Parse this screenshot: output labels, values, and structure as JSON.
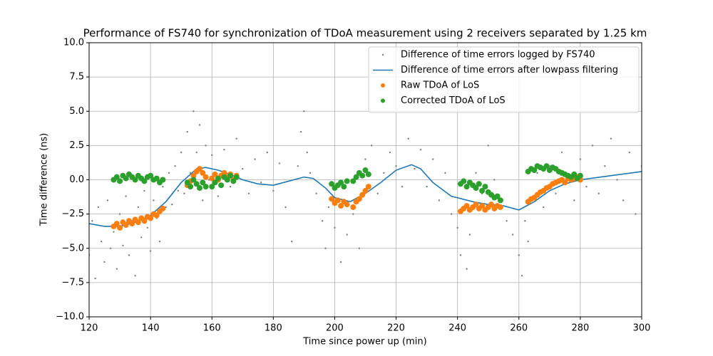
{
  "chart_data": {
    "type": "scatter",
    "title": "Performance of FS740 for synchronization of TDoA measurement using 2 receivers separated by 1.25 km",
    "xlabel": "Time since power up (min)",
    "ylabel": "Time difference (ns)",
    "xlim": [
      120,
      300
    ],
    "xticks": [
      120,
      140,
      160,
      180,
      200,
      220,
      240,
      260,
      280,
      300
    ],
    "ylim": [
      -10,
      10
    ],
    "yticks": [
      {
        "value": -10,
        "label": "−10.0"
      },
      {
        "value": -7.5,
        "label": "−7.5"
      },
      {
        "value": -5,
        "label": "−5.0"
      },
      {
        "value": -2.5,
        "label": "−2.5"
      },
      {
        "value": 0,
        "label": "0.0"
      },
      {
        "value": 2.5,
        "label": "2.5"
      },
      {
        "value": 5,
        "label": "5.0"
      },
      {
        "value": 7.5,
        "label": "7.5"
      },
      {
        "value": 10,
        "label": "10.0"
      }
    ],
    "grid": true,
    "legend": "upper right",
    "series": [
      {
        "name": "Difference of time errors logged by FS740",
        "color": "#808080",
        "mode": "markers",
        "size": 1.2,
        "x": [
          120,
          121,
          122,
          123,
          124,
          125,
          126,
          127,
          128,
          129,
          130,
          131,
          132,
          133,
          134,
          135,
          136,
          137,
          138,
          139,
          140,
          141,
          142,
          143,
          144,
          145,
          146,
          147,
          148,
          149,
          150,
          151,
          152,
          153,
          154,
          155,
          156,
          157,
          158,
          159,
          160,
          162,
          164,
          166,
          168,
          170,
          172,
          174,
          176,
          178,
          180,
          182,
          184,
          186,
          188,
          189,
          190,
          191,
          192,
          194,
          196,
          197,
          198,
          200,
          202,
          204,
          206,
          208,
          210,
          212,
          214,
          216,
          218,
          220,
          222,
          224,
          226,
          228,
          230,
          232,
          234,
          236,
          238,
          240,
          241,
          242,
          243,
          244,
          246,
          248,
          250,
          252,
          254,
          256,
          258,
          260,
          261,
          262,
          263,
          264,
          266,
          268,
          270,
          272,
          274,
          276,
          278,
          280,
          282,
          284,
          286,
          288,
          290,
          292,
          294,
          296,
          298,
          300
        ],
        "values": [
          -5.5,
          -3.0,
          -7.2,
          -2.0,
          -4.5,
          -6.0,
          -1.5,
          -5.0,
          -3.8,
          -6.5,
          -2.5,
          -4.8,
          -1.2,
          -5.5,
          -3.0,
          -7.0,
          -2.0,
          -4.2,
          -0.8,
          -3.5,
          -5.2,
          -1.5,
          -2.8,
          -4.5,
          -0.5,
          -2.0,
          0.5,
          -1.8,
          1.0,
          -0.8,
          2.0,
          -1.0,
          3.5,
          0.5,
          5.0,
          2.0,
          4.0,
          -1.5,
          2.5,
          0.0,
          1.8,
          -1.2,
          2.2,
          -0.5,
          3.0,
          0.8,
          -1.0,
          1.5,
          -0.2,
          2.0,
          -0.8,
          1.2,
          -2.0,
          -4.5,
          1.0,
          3.5,
          5.0,
          2.0,
          0.5,
          -1.0,
          -3.0,
          -5.0,
          -2.0,
          -3.5,
          -6.0,
          -4.0,
          -2.5,
          -5.0,
          1.5,
          2.5,
          -1.0,
          0.5,
          2.0,
          1.0,
          -0.5,
          3.0,
          0.8,
          2.2,
          -0.5,
          1.5,
          -1.5,
          0.5,
          -2.5,
          -3.5,
          -5.5,
          -2.0,
          -6.5,
          -4.0,
          0.5,
          -1.0,
          2.5,
          0.0,
          -1.5,
          -3.0,
          -4.0,
          -5.5,
          -7.0,
          -3.0,
          -4.5,
          -1.5,
          0.5,
          -2.0,
          1.0,
          -1.0,
          2.0,
          0.0,
          -1.5,
          1.5,
          -0.5,
          2.5,
          -1.0,
          1.0,
          3.0,
          0.0,
          -1.5,
          2.0,
          -2.5,
          1.0
        ]
      },
      {
        "name": "Difference of time errors after lowpass filtering",
        "color": "#1f77b4",
        "mode": "line",
        "x": [
          120,
          125,
          130,
          135,
          140,
          145,
          150,
          155,
          158,
          162,
          166,
          170,
          175,
          180,
          185,
          190,
          193,
          197,
          200,
          205,
          210,
          215,
          220,
          225,
          228,
          232,
          238,
          245,
          250,
          255,
          260,
          265,
          270,
          275,
          280,
          290,
          300
        ],
        "values": [
          -3.2,
          -3.4,
          -3.4,
          -3.1,
          -2.6,
          -1.6,
          -0.2,
          0.8,
          0.9,
          0.7,
          0.4,
          0.0,
          -0.3,
          -0.4,
          -0.1,
          0.2,
          0.1,
          -0.6,
          -1.3,
          -1.6,
          -1.0,
          -0.2,
          0.7,
          1.1,
          0.8,
          -0.2,
          -1.2,
          -1.6,
          -1.8,
          -1.9,
          -2.2,
          -1.6,
          -0.8,
          -0.3,
          0.0,
          0.3,
          0.6
        ]
      },
      {
        "name": "Raw TDoA of LoS",
        "color": "#ff7f0e",
        "mode": "markers",
        "size": 4,
        "x": [
          128,
          129,
          130,
          131,
          132,
          133,
          134,
          135,
          136,
          137,
          138,
          139,
          140,
          141,
          142,
          143,
          144,
          152,
          153,
          154,
          155,
          156,
          157,
          158,
          160,
          161,
          162,
          163,
          164,
          165,
          166,
          167,
          168,
          199,
          200,
          201,
          202,
          203,
          204,
          206,
          207,
          208,
          209,
          210,
          211,
          241,
          242,
          243,
          244,
          245,
          246,
          247,
          248,
          249,
          250,
          251,
          252,
          253,
          254,
          263,
          264,
          265,
          266,
          267,
          268,
          269,
          270,
          271,
          272,
          273,
          274,
          275,
          276,
          277,
          278,
          279,
          280
        ],
        "values": [
          -3.4,
          -3.2,
          -3.5,
          -3.1,
          -3.3,
          -3.0,
          -3.2,
          -2.9,
          -3.1,
          -2.8,
          -3.0,
          -2.7,
          -2.8,
          -2.5,
          -2.6,
          -2.3,
          -2.1,
          -0.4,
          -0.1,
          0.3,
          0.6,
          0.8,
          0.5,
          0.2,
          0.1,
          0.4,
          0.0,
          0.3,
          0.5,
          0.2,
          0.4,
          0.0,
          0.3,
          -1.4,
          -1.7,
          -1.5,
          -1.9,
          -1.6,
          -1.8,
          -2.0,
          -1.6,
          -1.4,
          -1.1,
          -0.8,
          -0.5,
          -2.3,
          -2.1,
          -1.9,
          -2.2,
          -2.0,
          -1.8,
          -2.1,
          -1.9,
          -2.2,
          -2.0,
          -1.8,
          -2.1,
          -1.9,
          -2.0,
          -1.6,
          -1.4,
          -1.3,
          -1.1,
          -0.9,
          -0.8,
          -0.6,
          -0.5,
          -0.3,
          -0.2,
          -0.1,
          0.0,
          -0.2,
          0.1,
          0.0,
          0.1,
          0.2,
          0.0
        ]
      },
      {
        "name": "Corrected TDoA of LoS",
        "color": "#2ca02c",
        "mode": "markers",
        "size": 4,
        "x": [
          128,
          129,
          130,
          131,
          132,
          133,
          134,
          135,
          136,
          137,
          138,
          139,
          140,
          141,
          142,
          143,
          144,
          152,
          153,
          154,
          155,
          156,
          157,
          158,
          160,
          161,
          162,
          163,
          164,
          165,
          166,
          167,
          168,
          199,
          200,
          201,
          202,
          203,
          204,
          206,
          207,
          208,
          209,
          210,
          211,
          241,
          242,
          243,
          244,
          245,
          246,
          247,
          248,
          249,
          250,
          251,
          252,
          253,
          254,
          263,
          264,
          265,
          266,
          267,
          268,
          269,
          270,
          271,
          272,
          273,
          274,
          275,
          276,
          277,
          278,
          279,
          280
        ],
        "values": [
          0.0,
          0.2,
          -0.1,
          0.3,
          0.1,
          0.4,
          0.2,
          0.0,
          0.3,
          0.1,
          -0.1,
          0.2,
          0.3,
          0.0,
          0.1,
          -0.2,
          0.0,
          -0.2,
          -0.5,
          0.0,
          -0.3,
          -0.6,
          -0.2,
          -0.5,
          -0.5,
          -0.2,
          0.1,
          -0.4,
          0.2,
          0.0,
          0.3,
          -0.1,
          0.2,
          -0.3,
          -0.6,
          -0.4,
          -0.2,
          -0.5,
          -0.1,
          -0.1,
          0.2,
          0.5,
          0.3,
          0.7,
          0.4,
          -0.3,
          -0.1,
          -0.5,
          -0.2,
          -0.4,
          -0.6,
          -0.3,
          -0.8,
          -0.5,
          -0.9,
          -1.1,
          -1.3,
          -1.2,
          -1.5,
          0.6,
          0.8,
          0.7,
          1.0,
          0.9,
          0.8,
          1.0,
          0.7,
          0.9,
          0.8,
          0.6,
          0.5,
          0.4,
          0.3,
          0.2,
          0.4,
          0.1,
          0.3
        ]
      }
    ]
  }
}
